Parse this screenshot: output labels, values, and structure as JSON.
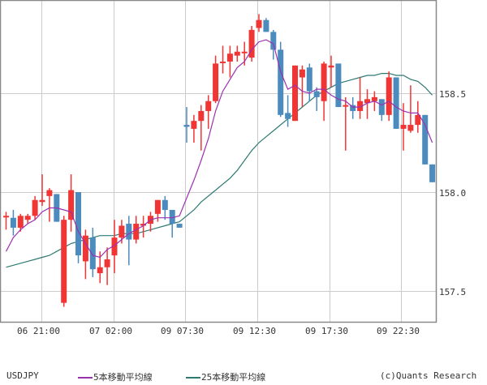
{
  "chart_data": {
    "type": "candlestick",
    "symbol": "USDJPY",
    "title": "",
    "xlabel": "",
    "ylabel": "",
    "ylim": [
      157.31,
      158.98
    ],
    "y_ticks": [
      157.5,
      158.0,
      158.5
    ],
    "y_tick_labels": [
      "157.5",
      "158.0",
      "158.5"
    ],
    "x_tick_labels": [
      "06 21:00",
      "07 02:00",
      "09 07:30",
      "09 12:30",
      "09 17:30",
      "09 22:30"
    ],
    "grid": true,
    "colors": {
      "up": "#f03535",
      "down": "#4b8bbe",
      "ma5": "#9b30b0",
      "ma25": "#2e7a73",
      "grid": "#cccccc",
      "axis": "#888888"
    },
    "legend": [
      {
        "name": "5本移動平均線",
        "color": "#9b30b0"
      },
      {
        "name": "25本移動平均線",
        "color": "#2e7a73"
      }
    ],
    "candles": [
      {
        "o": 157.88,
        "h": 157.9,
        "l": 157.81,
        "c": 157.88
      },
      {
        "o": 157.87,
        "h": 157.91,
        "l": 157.78,
        "c": 157.82
      },
      {
        "o": 157.82,
        "h": 157.89,
        "l": 157.8,
        "c": 157.88
      },
      {
        "o": 157.86,
        "h": 157.89,
        "l": 157.84,
        "c": 157.88
      },
      {
        "o": 157.88,
        "h": 157.98,
        "l": 157.86,
        "c": 157.96
      },
      {
        "o": 157.95,
        "h": 158.09,
        "l": 157.93,
        "c": 157.96
      },
      {
        "o": 157.98,
        "h": 158.02,
        "l": 157.85,
        "c": 158.01
      },
      {
        "o": 157.99,
        "h": 157.99,
        "l": 157.85,
        "c": 157.85
      },
      {
        "o": 157.44,
        "h": 157.88,
        "l": 157.42,
        "c": 157.86
      },
      {
        "o": 157.86,
        "h": 158.09,
        "l": 157.8,
        "c": 158.01
      },
      {
        "o": 158.0,
        "h": 158.0,
        "l": 157.64,
        "c": 157.68
      },
      {
        "o": 157.65,
        "h": 157.81,
        "l": 157.56,
        "c": 157.78
      },
      {
        "o": 157.77,
        "h": 157.82,
        "l": 157.57,
        "c": 157.61
      },
      {
        "o": 157.59,
        "h": 157.7,
        "l": 157.54,
        "c": 157.62
      },
      {
        "o": 157.62,
        "h": 157.72,
        "l": 157.53,
        "c": 157.66
      },
      {
        "o": 157.68,
        "h": 157.86,
        "l": 157.59,
        "c": 157.77
      },
      {
        "o": 157.77,
        "h": 157.86,
        "l": 157.74,
        "c": 157.83
      },
      {
        "o": 157.84,
        "h": 157.88,
        "l": 157.63,
        "c": 157.76
      },
      {
        "o": 157.76,
        "h": 157.88,
        "l": 157.74,
        "c": 157.84
      },
      {
        "o": 157.83,
        "h": 157.88,
        "l": 157.77,
        "c": 157.84
      },
      {
        "o": 157.84,
        "h": 157.9,
        "l": 157.8,
        "c": 157.88
      },
      {
        "o": 157.89,
        "h": 157.96,
        "l": 157.85,
        "c": 157.96
      },
      {
        "o": 157.96,
        "h": 157.98,
        "l": 157.86,
        "c": 157.91
      },
      {
        "o": 157.91,
        "h": 157.91,
        "l": 157.77,
        "c": 157.84
      },
      {
        "o": 157.84,
        "h": 157.84,
        "l": 157.82,
        "c": 157.82
      },
      {
        "o": 158.34,
        "h": 158.43,
        "l": 158.25,
        "c": 158.33
      },
      {
        "o": 158.32,
        "h": 158.39,
        "l": 158.25,
        "c": 158.36
      },
      {
        "o": 158.36,
        "h": 158.44,
        "l": 158.21,
        "c": 158.41
      },
      {
        "o": 158.41,
        "h": 158.49,
        "l": 158.32,
        "c": 158.46
      },
      {
        "o": 158.46,
        "h": 158.69,
        "l": 158.45,
        "c": 158.65
      },
      {
        "o": 158.66,
        "h": 158.74,
        "l": 158.6,
        "c": 158.66
      },
      {
        "o": 158.66,
        "h": 158.74,
        "l": 158.58,
        "c": 158.7
      },
      {
        "o": 158.69,
        "h": 158.74,
        "l": 158.66,
        "c": 158.71
      },
      {
        "o": 158.71,
        "h": 158.76,
        "l": 158.64,
        "c": 158.71
      },
      {
        "o": 158.68,
        "h": 158.84,
        "l": 158.66,
        "c": 158.82
      },
      {
        "o": 158.83,
        "h": 158.9,
        "l": 158.81,
        "c": 158.87
      },
      {
        "o": 158.87,
        "h": 158.88,
        "l": 158.81,
        "c": 158.81
      },
      {
        "o": 158.81,
        "h": 158.82,
        "l": 158.67,
        "c": 158.72
      },
      {
        "o": 158.72,
        "h": 158.76,
        "l": 158.38,
        "c": 158.39
      },
      {
        "o": 158.4,
        "h": 158.49,
        "l": 158.33,
        "c": 158.37
      },
      {
        "o": 158.36,
        "h": 158.64,
        "l": 158.36,
        "c": 158.64
      },
      {
        "o": 158.58,
        "h": 158.64,
        "l": 158.43,
        "c": 158.62
      },
      {
        "o": 158.63,
        "h": 158.65,
        "l": 158.46,
        "c": 158.51
      },
      {
        "o": 158.51,
        "h": 158.53,
        "l": 158.41,
        "c": 158.48
      },
      {
        "o": 158.46,
        "h": 158.66,
        "l": 158.36,
        "c": 158.65
      },
      {
        "o": 158.63,
        "h": 158.69,
        "l": 158.53,
        "c": 158.64
      },
      {
        "o": 158.65,
        "h": 158.65,
        "l": 158.43,
        "c": 158.43
      },
      {
        "o": 158.44,
        "h": 158.48,
        "l": 158.21,
        "c": 158.44
      },
      {
        "o": 158.44,
        "h": 158.48,
        "l": 158.37,
        "c": 158.41
      },
      {
        "o": 158.41,
        "h": 158.58,
        "l": 158.37,
        "c": 158.46
      },
      {
        "o": 158.45,
        "h": 158.52,
        "l": 158.37,
        "c": 158.47
      },
      {
        "o": 158.46,
        "h": 158.51,
        "l": 158.41,
        "c": 158.48
      },
      {
        "o": 158.47,
        "h": 158.47,
        "l": 158.36,
        "c": 158.39
      },
      {
        "o": 158.39,
        "h": 158.61,
        "l": 158.36,
        "c": 158.58
      },
      {
        "o": 158.58,
        "h": 158.58,
        "l": 158.32,
        "c": 158.32
      },
      {
        "o": 158.32,
        "h": 158.45,
        "l": 158.21,
        "c": 158.34
      },
      {
        "o": 158.31,
        "h": 158.54,
        "l": 158.3,
        "c": 158.34
      },
      {
        "o": 158.34,
        "h": 158.46,
        "l": 158.3,
        "c": 158.39
      },
      {
        "o": 158.39,
        "h": 158.39,
        "l": 158.14,
        "c": 158.14
      },
      {
        "o": 158.14,
        "h": 158.14,
        "l": 158.05,
        "c": 158.05
      }
    ],
    "ma5": [
      157.7,
      157.77,
      157.81,
      157.84,
      157.86,
      157.9,
      157.92,
      157.92,
      157.91,
      157.9,
      157.8,
      157.74,
      157.68,
      157.67,
      157.71,
      157.73,
      157.76,
      157.79,
      157.81,
      157.83,
      157.86,
      157.87,
      157.87,
      157.87,
      157.88,
      157.97,
      158.06,
      158.16,
      158.27,
      158.41,
      158.51,
      158.57,
      158.63,
      158.66,
      158.72,
      158.76,
      158.77,
      158.75,
      158.61,
      158.52,
      158.54,
      158.51,
      158.5,
      158.52,
      158.52,
      158.49,
      158.47,
      158.46,
      158.43,
      158.43,
      158.45,
      158.46,
      158.44,
      158.46,
      158.43,
      158.41,
      158.4,
      158.4,
      158.34,
      158.25
    ],
    "ma25": [
      157.62,
      157.63,
      157.64,
      157.65,
      157.66,
      157.67,
      157.68,
      157.7,
      157.72,
      157.74,
      157.75,
      157.76,
      157.77,
      157.78,
      157.78,
      157.78,
      157.79,
      157.79,
      157.79,
      157.8,
      157.81,
      157.82,
      157.83,
      157.84,
      157.85,
      157.88,
      157.91,
      157.95,
      157.98,
      158.01,
      158.04,
      158.07,
      158.11,
      158.16,
      158.21,
      158.25,
      158.28,
      158.31,
      158.34,
      158.37,
      158.4,
      158.43,
      158.46,
      158.49,
      158.51,
      158.53,
      158.55,
      158.56,
      158.57,
      158.58,
      158.59,
      158.59,
      158.6,
      158.6,
      158.59,
      158.59,
      158.57,
      158.56,
      158.53,
      158.49
    ]
  },
  "footer": {
    "symbol": "USDJPY",
    "ma5_label": "5本移動平均線",
    "ma25_label": "25本移動平均線",
    "credit": "(c)Quants Research"
  }
}
